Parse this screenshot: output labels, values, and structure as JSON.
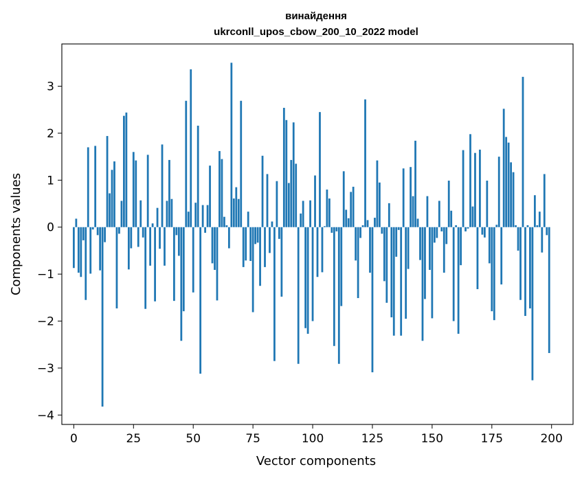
{
  "chart_data": {
    "type": "bar",
    "title_line1": "винайдення",
    "title_line2": "ukrconll_upos_cbow_200_10_2022 model",
    "xlabel": "Vector components",
    "ylabel": "Components values",
    "xlim": [
      -5,
      209
    ],
    "ylim": [
      -4.2,
      3.9
    ],
    "x_ticks": [
      0,
      25,
      50,
      75,
      100,
      125,
      150,
      175,
      200
    ],
    "x_tick_labels": [
      "0",
      "25",
      "50",
      "75",
      "100",
      "125",
      "150",
      "175",
      "200"
    ],
    "y_ticks": [
      3,
      2,
      1,
      0,
      -1,
      -2,
      -3,
      -4
    ],
    "y_tick_labels": [
      "3",
      "2",
      "1",
      "0",
      "−1",
      "−2",
      "−3",
      "−4"
    ],
    "bar_color": "#1f77b4",
    "grid": false,
    "x": [
      0,
      1,
      2,
      3,
      4,
      5,
      6,
      7,
      8,
      9,
      10,
      11,
      12,
      13,
      14,
      15,
      16,
      17,
      18,
      19,
      20,
      21,
      22,
      23,
      24,
      25,
      26,
      27,
      28,
      29,
      30,
      31,
      32,
      33,
      34,
      35,
      36,
      37,
      38,
      39,
      40,
      41,
      42,
      43,
      44,
      45,
      46,
      47,
      48,
      49,
      50,
      51,
      52,
      53,
      54,
      55,
      56,
      57,
      58,
      59,
      60,
      61,
      62,
      63,
      64,
      65,
      66,
      67,
      68,
      69,
      70,
      71,
      72,
      73,
      74,
      75,
      76,
      77,
      78,
      79,
      80,
      81,
      82,
      83,
      84,
      85,
      86,
      87,
      88,
      89,
      90,
      91,
      92,
      93,
      94,
      95,
      96,
      97,
      98,
      99,
      100,
      101,
      102,
      103,
      104,
      105,
      106,
      107,
      108,
      109,
      110,
      111,
      112,
      113,
      114,
      115,
      116,
      117,
      118,
      119,
      120,
      121,
      122,
      123,
      124,
      125,
      126,
      127,
      128,
      129,
      130,
      131,
      132,
      133,
      134,
      135,
      136,
      137,
      138,
      139,
      140,
      141,
      142,
      143,
      144,
      145,
      146,
      147,
      148,
      149,
      150,
      151,
      152,
      153,
      154,
      155,
      156,
      157,
      158,
      159,
      160,
      161,
      162,
      163,
      164,
      165,
      166,
      167,
      168,
      169,
      170,
      171,
      172,
      173,
      174,
      175,
      176,
      177,
      178,
      179,
      180,
      181,
      182,
      183,
      184,
      185,
      186,
      187,
      188,
      189,
      190,
      191,
      192,
      193,
      194,
      195,
      196,
      197,
      198,
      199
    ],
    "values": [
      -0.87,
      0.18,
      -0.97,
      -1.06,
      -0.28,
      -1.55,
      1.7,
      -0.99,
      -0.05,
      1.73,
      -0.17,
      -0.92,
      -3.82,
      -0.32,
      1.94,
      0.72,
      1.22,
      1.4,
      -1.73,
      -0.14,
      0.56,
      2.37,
      2.44,
      -0.9,
      -0.45,
      1.6,
      1.42,
      -0.42,
      0.57,
      -0.22,
      -1.74,
      1.54,
      -0.82,
      0.08,
      -1.58,
      0.41,
      -0.46,
      1.76,
      -0.82,
      0.56,
      1.43,
      0.6,
      -1.57,
      -0.17,
      -0.61,
      -2.42,
      -1.79,
      2.69,
      0.33,
      3.36,
      -1.39,
      0.52,
      2.16,
      -3.12,
      0.47,
      -0.12,
      0.47,
      1.31,
      -0.77,
      -0.91,
      -1.56,
      1.62,
      1.45,
      0.22,
      0.04,
      -0.45,
      3.5,
      0.61,
      0.85,
      0.6,
      2.69,
      -0.85,
      -0.71,
      0.33,
      -0.72,
      -1.81,
      -0.36,
      -0.33,
      -1.25,
      1.52,
      -0.85,
      1.13,
      -0.55,
      0.12,
      -2.85,
      0.98,
      -0.25,
      -1.48,
      2.54,
      2.28,
      0.94,
      1.43,
      2.23,
      1.35,
      -2.91,
      0.29,
      0.56,
      -2.15,
      -2.27,
      0.57,
      -2.0,
      1.1,
      -1.06,
      2.45,
      -0.96,
      0.02,
      0.8,
      0.61,
      -0.12,
      -2.53,
      -0.09,
      -2.91,
      -1.68,
      1.19,
      0.37,
      0.19,
      0.75,
      0.86,
      -0.71,
      -1.51,
      -0.23,
      0.04,
      2.72,
      0.15,
      -0.97,
      -3.09,
      0.2,
      1.42,
      0.95,
      -0.14,
      -1.15,
      -1.61,
      0.51,
      -1.92,
      -2.31,
      -0.63,
      -0.06,
      -2.31,
      1.25,
      -1.95,
      -0.89,
      1.28,
      0.66,
      1.84,
      0.18,
      -0.7,
      -2.42,
      -1.53,
      0.66,
      -0.91,
      -1.94,
      -0.33,
      -0.23,
      0.56,
      -0.09,
      -0.97,
      -0.36,
      0.99,
      0.35,
      -2.0,
      0.04,
      -2.27,
      -0.81,
      1.64,
      -0.09,
      -0.03,
      1.98,
      0.44,
      1.58,
      -1.32,
      1.65,
      -0.16,
      -0.22,
      0.99,
      -0.77,
      -1.79,
      -1.98,
      0.05,
      1.5,
      -1.22,
      2.52,
      1.92,
      1.8,
      1.38,
      1.17,
      0.04,
      -0.5,
      -1.55,
      3.2,
      -1.89,
      0.04,
      -1.73,
      -3.26,
      0.68,
      0.04,
      0.33,
      -0.54,
      1.13,
      -0.17,
      -2.68
    ]
  }
}
